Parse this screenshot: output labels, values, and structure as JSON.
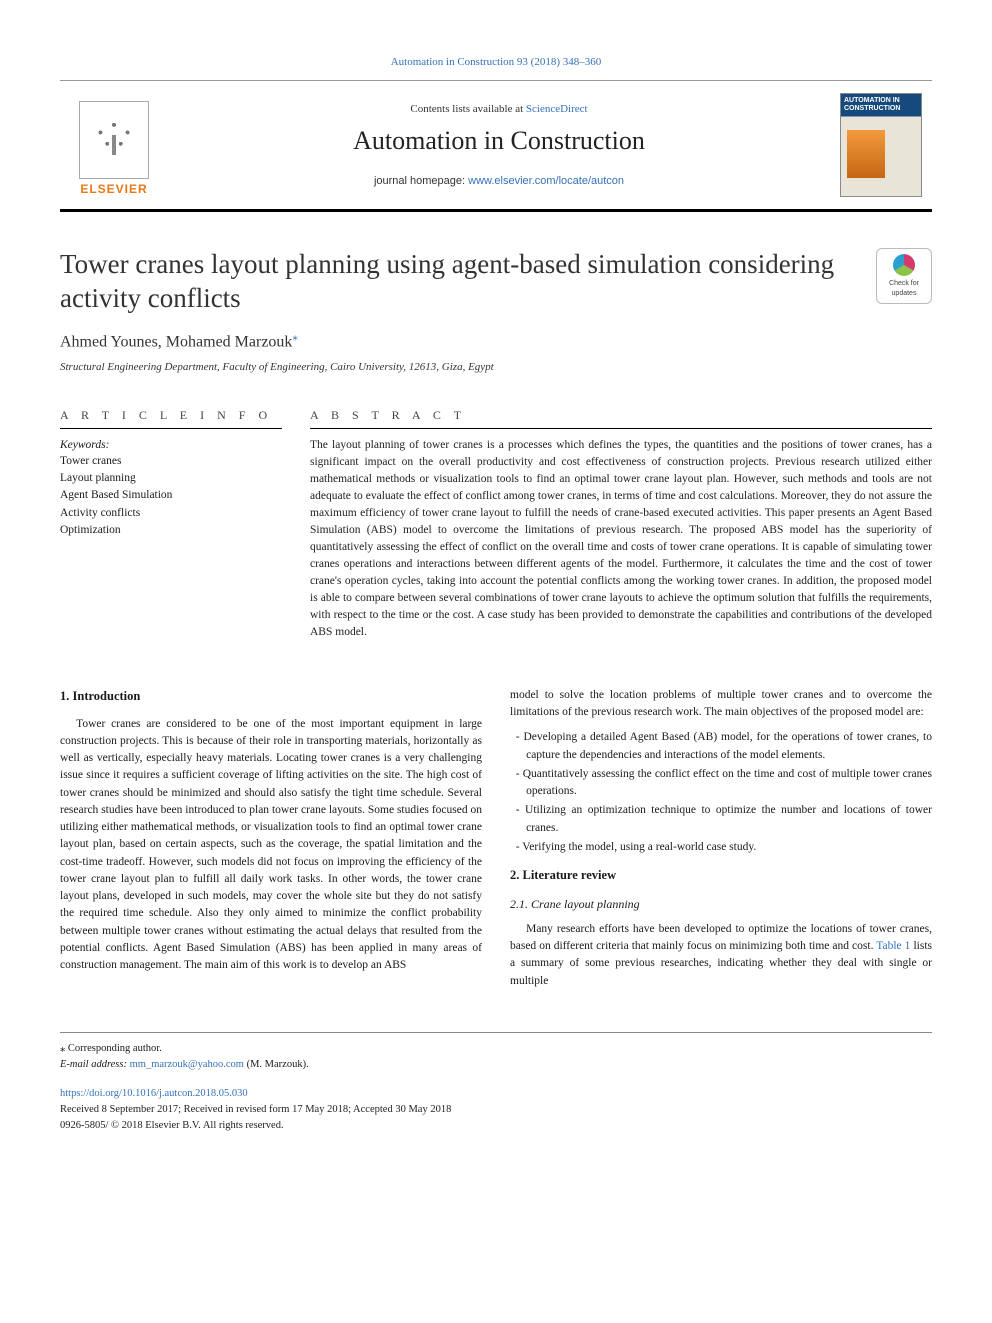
{
  "citation": "Automation in Construction 93 (2018) 348–360",
  "banner": {
    "publisher_name": "ELSEVIER",
    "contents_prefix": "Contents lists available at ",
    "contents_link": "ScienceDirect",
    "journal_name": "Automation in Construction",
    "homepage_prefix": "journal homepage: ",
    "homepage_url": "www.elsevier.com/locate/autcon",
    "cover_title": "AUTOMATION IN CONSTRUCTION"
  },
  "article": {
    "title": "Tower cranes layout planning using agent-based simulation considering activity conflicts",
    "check_updates_label": "Check for updates",
    "authors": "Ahmed Younes, Mohamed Marzouk",
    "corr_mark": "⁎",
    "affiliation": "Structural Engineering Department, Faculty of Engineering, Cairo University, 12613, Giza, Egypt"
  },
  "info": {
    "heading": "A R T I C L E  I N F O",
    "keywords_label": "Keywords:",
    "keywords": [
      "Tower cranes",
      "Layout planning",
      "Agent Based Simulation",
      "Activity conflicts",
      "Optimization"
    ]
  },
  "abstract": {
    "heading": "A B S T R A C T",
    "text": "The layout planning of tower cranes is a processes which defines the types, the quantities and the positions of tower cranes, has a significant impact on the overall productivity and cost effectiveness of construction projects. Previous research utilized either mathematical methods or visualization tools to find an optimal tower crane layout plan. However, such methods and tools are not adequate to evaluate the effect of conflict among tower cranes, in terms of time and cost calculations. Moreover, they do not assure the maximum efficiency of tower crane layout to fulfill the needs of crane-based executed activities. This paper presents an Agent Based Simulation (ABS) model to overcome the limitations of previous research. The proposed ABS model has the superiority of quantitatively assessing the effect of conflict on the overall time and costs of tower crane operations. It is capable of simulating tower cranes operations and interactions between different agents of the model. Furthermore, it calculates the time and the cost of tower crane's operation cycles, taking into account the potential conflicts among the working tower cranes. In addition, the proposed model is able to compare between several combinations of tower crane layouts to achieve the optimum solution that fulfills the requirements, with respect to the time or the cost. A case study has been provided to demonstrate the capabilities and contributions of the developed ABS model."
  },
  "body": {
    "intro_heading": "1. Introduction",
    "intro_p1": "Tower cranes are considered to be one of the most important equipment in large construction projects. This is because of their role in transporting materials, horizontally as well as vertically, especially heavy materials. Locating tower cranes is a very challenging issue since it requires a sufficient coverage of lifting activities on the site. The high cost of tower cranes should be minimized and should also satisfy the tight time schedule. Several research studies have been introduced to plan tower crane layouts. Some studies focused on utilizing either mathematical methods, or visualization tools to find an optimal tower crane layout plan, based on certain aspects, such as the coverage, the spatial limitation and the cost-time tradeoff. However, such models did not focus on improving the efficiency of the tower crane layout plan to fulfill all daily work tasks. In other words, the tower crane layout plans, developed in such models, may cover the whole site but they do not satisfy the required time schedule. Also they only aimed to minimize the conflict probability between multiple tower cranes without estimating the actual delays that resulted from the potential conflicts. Agent Based Simulation (ABS) has been applied in many areas of construction management. The main aim of this work is to develop an ABS",
    "intro_p2": "model to solve the location problems of multiple tower cranes and to overcome the limitations of the previous research work. The main objectives of the proposed model are:",
    "objectives": [
      "Developing a detailed Agent Based (AB) model, for the operations of tower cranes, to capture the dependencies and interactions of the model elements.",
      "Quantitatively assessing the conflict effect on the time and cost of multiple tower cranes operations.",
      "Utilizing an optimization technique to optimize the number and locations of tower cranes.",
      "Verifying the model, using a real-world case study."
    ],
    "lit_heading": "2. Literature review",
    "lit_sub": "2.1. Crane layout planning",
    "lit_p1a": "Many research efforts have been developed to optimize the locations of tower cranes, based on different criteria that mainly focus on minimizing both time and cost. ",
    "lit_table_ref": "Table 1",
    "lit_p1b": " lists a summary of some previous researches, indicating whether they deal with single or multiple"
  },
  "footer": {
    "corr_label": "⁎ Corresponding author.",
    "email_label": "E-mail address: ",
    "email": "mm_marzouk@yahoo.com",
    "email_author": " (M. Marzouk).",
    "doi": "https://doi.org/10.1016/j.autcon.2018.05.030",
    "dates": "Received 8 September 2017; Received in revised form 17 May 2018; Accepted 30 May 2018",
    "copyright": "0926-5805/ © 2018 Elsevier B.V. All rights reserved."
  },
  "colors": {
    "link": "#3571b9",
    "publisher": "#e77919",
    "rule": "#000000"
  }
}
